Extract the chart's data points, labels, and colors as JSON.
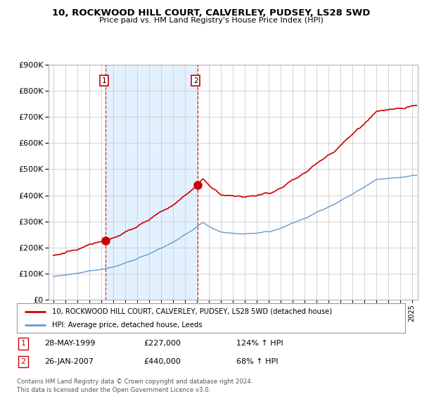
{
  "title": "10, ROCKWOOD HILL COURT, CALVERLEY, PUDSEY, LS28 5WD",
  "subtitle": "Price paid vs. HM Land Registry's House Price Index (HPI)",
  "legend_line1": "10, ROCKWOOD HILL COURT, CALVERLEY, PUDSEY, LS28 5WD (detached house)",
  "legend_line2": "HPI: Average price, detached house, Leeds",
  "footer": "Contains HM Land Registry data © Crown copyright and database right 2024.\nThis data is licensed under the Open Government Licence v3.0.",
  "sale1_label": "1",
  "sale1_date": "28-MAY-1999",
  "sale1_price": "£227,000",
  "sale1_hpi": "124% ↑ HPI",
  "sale2_label": "2",
  "sale2_date": "26-JAN-2007",
  "sale2_price": "£440,000",
  "sale2_hpi": "68% ↑ HPI",
  "red_color": "#cc0000",
  "blue_color": "#6699cc",
  "shade_color": "#ddeeff",
  "bg_color": "#ffffff",
  "grid_color": "#cccccc",
  "sale1_x": 1999.38,
  "sale1_y": 227000,
  "sale2_x": 2007.07,
  "sale2_y": 440000,
  "ylim": [
    0,
    900000
  ],
  "xlim_left": 1994.6,
  "xlim_right": 2025.5
}
